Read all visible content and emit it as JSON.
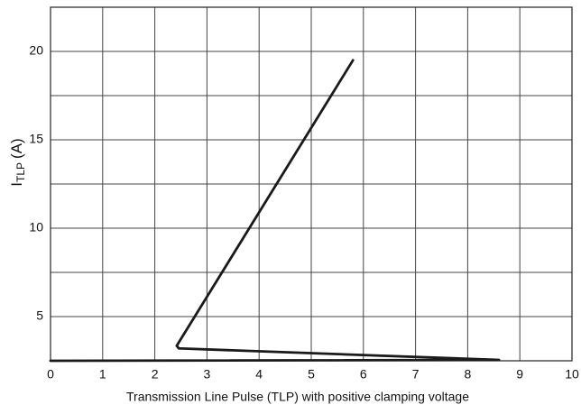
{
  "chart_data": {
    "type": "line",
    "xlabel": "Transmission Line Pulse (TLP) with positive clamping voltage",
    "ylabel": {
      "main": "I",
      "sub": "TLP",
      "unit": "(A)"
    },
    "xlim": [
      0,
      10
    ],
    "xticks": [
      0,
      1,
      2,
      3,
      4,
      5,
      6,
      7,
      8,
      9,
      10
    ],
    "ylim": [
      2.5,
      22.5
    ],
    "yticks": [
      5,
      10,
      15,
      20
    ],
    "yminorticks": [
      2.5,
      7.5,
      12.5,
      17.5,
      22.5
    ],
    "grid": true,
    "series": [
      {
        "name": null,
        "color": "#1a1a1a",
        "x": [
          0,
          8.6,
          2.46,
          2.42,
          5.8
        ],
        "values": [
          2.5,
          2.55,
          3.2,
          3.35,
          19.5
        ]
      }
    ]
  }
}
